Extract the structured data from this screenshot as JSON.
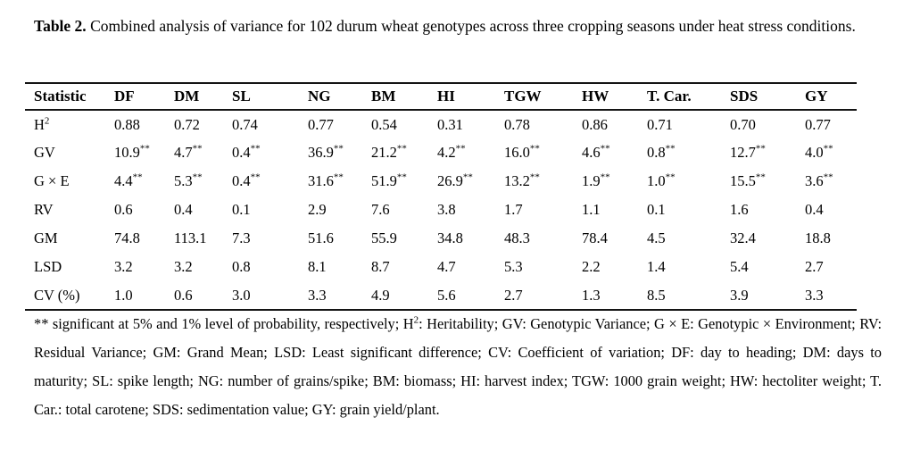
{
  "page": {
    "background_color": "#ffffff",
    "text_color": "#000000",
    "rule_color": "#141414"
  },
  "title": {
    "label": "Table 2.",
    "text": "Combined analysis of variance for 102 durum wheat genotypes across three cropping seasons under heat stress conditions."
  },
  "table": {
    "columns": [
      "Statistic",
      "DF",
      "DM",
      "SL",
      "NG",
      "BM",
      "HI",
      "TGW",
      "HW",
      "T. Car.",
      "SDS",
      "GY"
    ],
    "rows": [
      {
        "label": "H",
        "label_sup": "2",
        "values": [
          "0.88",
          "0.72",
          "0.74",
          "0.77",
          "0.54",
          "0.31",
          "0.78",
          "0.86",
          "0.71",
          "0.70",
          "0.77"
        ]
      },
      {
        "label": "GV",
        "label_sup": "",
        "values": [
          "10.9**",
          "4.7**",
          "0.4**",
          "36.9**",
          "21.2**",
          "4.2**",
          "16.0**",
          "4.6**",
          "0.8**",
          "12.7**",
          "4.0**"
        ]
      },
      {
        "label": "G × E",
        "label_sup": "",
        "values": [
          "4.4**",
          "5.3**",
          "0.4**",
          "31.6**",
          "51.9**",
          "26.9**",
          "13.2**",
          "1.9**",
          "1.0**",
          "15.5**",
          "3.6**"
        ]
      },
      {
        "label": "RV",
        "label_sup": "",
        "values": [
          "0.6",
          "0.4",
          "0.1",
          "2.9",
          "7.6",
          "3.8",
          "1.7",
          "1.1",
          "0.1",
          "1.6",
          "0.4"
        ]
      },
      {
        "label": "GM",
        "label_sup": "",
        "values": [
          "74.8",
          "113.1",
          "7.3",
          "51.6",
          "55.9",
          "34.8",
          "48.3",
          "78.4",
          "4.5",
          "32.4",
          "18.8"
        ]
      },
      {
        "label": "LSD",
        "label_sup": "",
        "values": [
          "3.2",
          "3.2",
          "0.8",
          "8.1",
          "8.7",
          "4.7",
          "5.3",
          "2.2",
          "1.4",
          "5.4",
          "2.7"
        ]
      },
      {
        "label": "CV (%)",
        "label_sup": "",
        "values": [
          "1.0",
          "0.6",
          "3.0",
          "3.3",
          "4.9",
          "5.6",
          "2.7",
          "1.3",
          "8.5",
          "3.9",
          "3.3"
        ]
      }
    ]
  },
  "footnote": {
    "before_sup": "** significant at 5% and 1% level of probability, respectively; H",
    "sup": "2",
    "after_sup": ": Heritability; GV: Genotypic Variance; G × E: Genotypic × Environment; RV: Residual Variance; GM: Grand Mean; LSD: Least significant difference; CV: Coefficient of variation; DF: day to heading; DM: days to maturity; SL: spike length; NG: number of grains/spike; BM: biomass; HI: harvest index; TGW: 1000 grain weight; HW: hectoliter weight; T. Car.: total carotene; SDS: sedimentation value; GY: grain yield/plant."
  }
}
